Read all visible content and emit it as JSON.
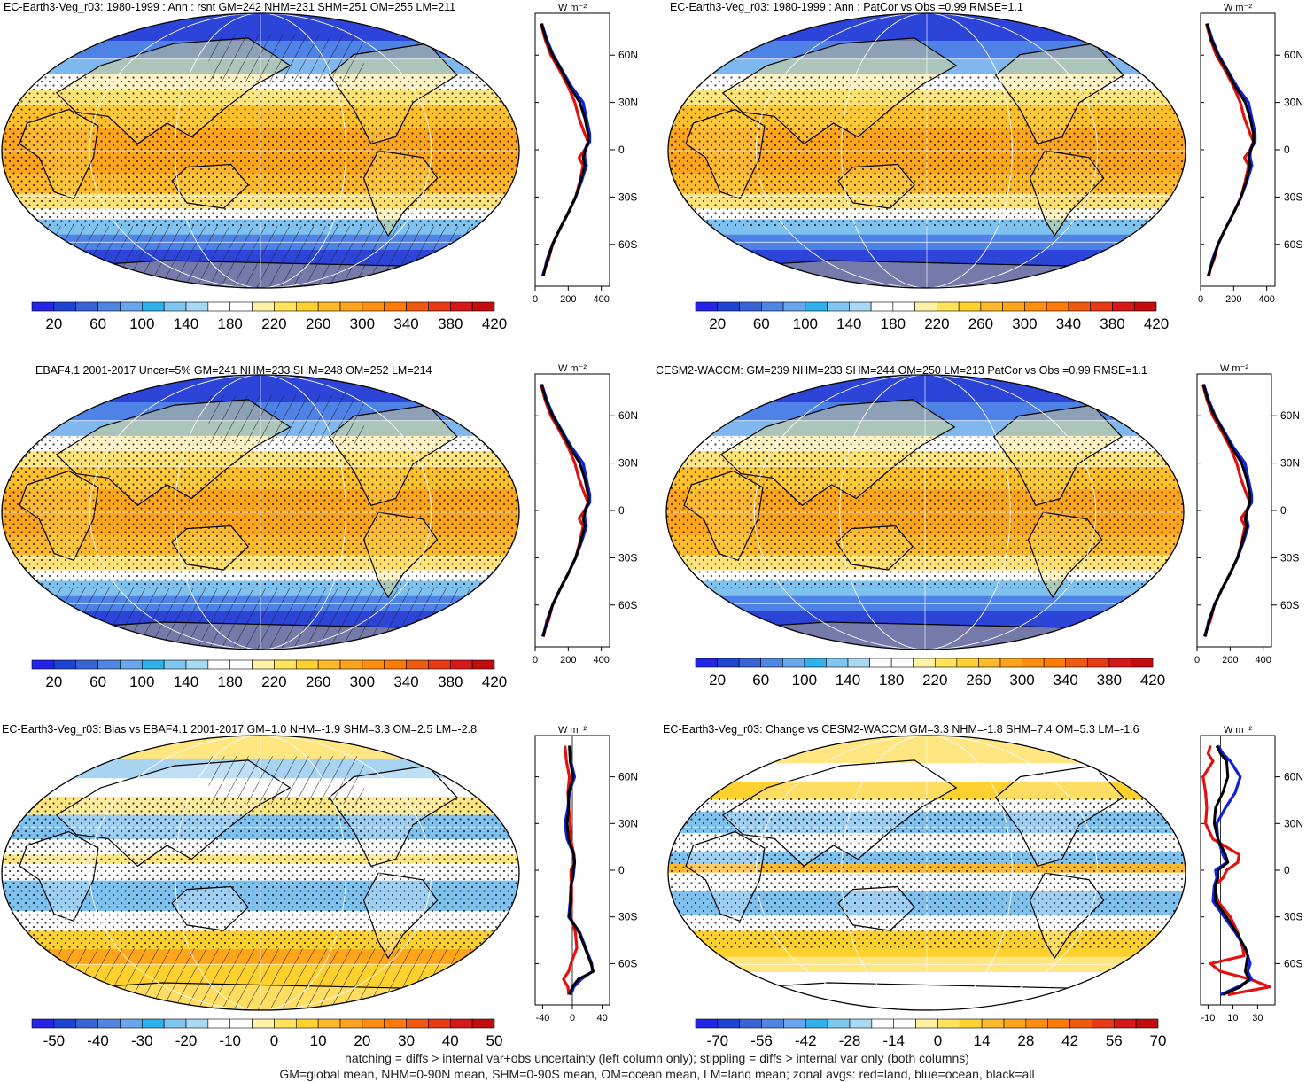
{
  "panels": [
    {
      "title": "EC-Earth3-Veg_r03: 1980-1999 : Ann : rsnt GM=242 NHM=231 SHM=251 OM=255 LM=211",
      "map_kind": "abs",
      "hatch": true,
      "stipple": true,
      "colorbar": {
        "labels": [
          "20",
          "60",
          "100",
          "140",
          "180",
          "220",
          "260",
          "300",
          "340",
          "380",
          "420"
        ],
        "colors": [
          "#2424e6",
          "#1d44d3",
          "#3a64d6",
          "#4f85e3",
          "#6aa6ee",
          "#2fb2ec",
          "#7fc7f0",
          "#a8d8f2",
          "#ffffff",
          "#ffffff",
          "#fff2a6",
          "#ffe35a",
          "#ffd12e",
          "#ffb92a",
          "#ffa41d",
          "#ff8e10",
          "#ff7a08",
          "#f05a10",
          "#e83a14",
          "#d81818",
          "#c40c0c"
        ]
      },
      "zonal": {
        "unit": "W m⁻²",
        "yticks": [
          "60N",
          "30N",
          "0",
          "30S",
          "60S"
        ],
        "xticks": [
          "0",
          "200",
          "400"
        ],
        "xlim": [
          0,
          450
        ],
        "lat": [
          80,
          70,
          60,
          50,
          40,
          30,
          20,
          10,
          5,
          0,
          -5,
          -10,
          -20,
          -30,
          -40,
          -50,
          -60,
          -70,
          -75,
          -80
        ],
        "land": [
          35,
          60,
          95,
          150,
          200,
          240,
          265,
          300,
          320,
          300,
          265,
          290,
          270,
          245,
          200,
          150,
          105,
          80,
          60,
          50
        ],
        "ocean": [
          40,
          70,
          110,
          165,
          220,
          290,
          310,
          330,
          330,
          300,
          300,
          310,
          280,
          245,
          200,
          150,
          105,
          70,
          60,
          45
        ],
        "all": [
          38,
          65,
          105,
          160,
          210,
          270,
          300,
          320,
          320,
          305,
          290,
          300,
          275,
          245,
          200,
          150,
          105,
          75,
          60,
          48
        ]
      }
    },
    {
      "title": "EC-Earth3-Veg_r03: 1980-1999 : Ann : PatCor vs Obs =0.99 RMSE=1.1",
      "map_kind": "abs",
      "hatch": false,
      "stipple": true,
      "colorbar": {
        "labels": [
          "20",
          "60",
          "100",
          "140",
          "180",
          "220",
          "260",
          "300",
          "340",
          "380",
          "420"
        ],
        "colors": [
          "#2424e6",
          "#1d44d3",
          "#3a64d6",
          "#4f85e3",
          "#6aa6ee",
          "#2fb2ec",
          "#7fc7f0",
          "#a8d8f2",
          "#ffffff",
          "#ffffff",
          "#fff2a6",
          "#ffe35a",
          "#ffd12e",
          "#ffb92a",
          "#ffa41d",
          "#ff8e10",
          "#ff7a08",
          "#f05a10",
          "#e83a14",
          "#d81818",
          "#c40c0c"
        ]
      },
      "zonal": {
        "unit": "W m⁻²",
        "yticks": [
          "60N",
          "30N",
          "0",
          "30S",
          "60S"
        ],
        "xticks": [
          "0",
          "200",
          "400"
        ],
        "xlim": [
          0,
          450
        ],
        "lat": [
          80,
          70,
          60,
          50,
          40,
          30,
          20,
          10,
          5,
          0,
          -5,
          -10,
          -20,
          -30,
          -40,
          -50,
          -60,
          -70,
          -75,
          -80
        ],
        "land": [
          35,
          60,
          95,
          150,
          200,
          240,
          265,
          300,
          320,
          300,
          265,
          290,
          270,
          245,
          200,
          150,
          105,
          80,
          60,
          50
        ],
        "ocean": [
          40,
          70,
          110,
          165,
          220,
          290,
          310,
          330,
          330,
          300,
          300,
          310,
          280,
          245,
          200,
          150,
          105,
          70,
          60,
          45
        ],
        "all": [
          38,
          65,
          105,
          160,
          210,
          270,
          300,
          320,
          320,
          305,
          290,
          300,
          275,
          245,
          200,
          150,
          105,
          75,
          60,
          48
        ]
      }
    },
    {
      "title": "EBAF4.1 2001-2017 Uncer=5% GM=241 NHM=233 SHM=248 OM=252 LM=214",
      "map_kind": "abs",
      "hatch": true,
      "stipple": true,
      "colorbar": {
        "labels": [
          "20",
          "60",
          "100",
          "140",
          "180",
          "220",
          "260",
          "300",
          "340",
          "380",
          "420"
        ],
        "colors": [
          "#2424e6",
          "#1d44d3",
          "#3a64d6",
          "#4f85e3",
          "#6aa6ee",
          "#2fb2ec",
          "#7fc7f0",
          "#a8d8f2",
          "#ffffff",
          "#ffffff",
          "#fff2a6",
          "#ffe35a",
          "#ffd12e",
          "#ffb92a",
          "#ffa41d",
          "#ff8e10",
          "#ff7a08",
          "#f05a10",
          "#e83a14",
          "#d81818",
          "#c40c0c"
        ]
      },
      "zonal": {
        "unit": "W m⁻²",
        "yticks": [
          "60N",
          "30N",
          "0",
          "30S",
          "60S"
        ],
        "xticks": [
          "0",
          "200",
          "400"
        ],
        "xlim": [
          0,
          450
        ],
        "lat": [
          80,
          70,
          60,
          50,
          40,
          30,
          20,
          10,
          5,
          0,
          -5,
          -10,
          -20,
          -30,
          -40,
          -50,
          -60,
          -70,
          -75,
          -80
        ],
        "land": [
          35,
          60,
          95,
          150,
          200,
          240,
          265,
          300,
          320,
          300,
          265,
          290,
          270,
          245,
          200,
          150,
          105,
          80,
          60,
          50
        ],
        "ocean": [
          40,
          70,
          110,
          165,
          220,
          290,
          310,
          330,
          330,
          300,
          300,
          310,
          280,
          245,
          200,
          150,
          105,
          70,
          60,
          45
        ],
        "all": [
          38,
          65,
          105,
          160,
          210,
          270,
          300,
          320,
          320,
          305,
          290,
          300,
          275,
          245,
          200,
          150,
          105,
          75,
          60,
          48
        ]
      }
    },
    {
      "title": "CESM2-WACCM: GM=239 NHM=233 SHM=244 OM=250 LM=213 PatCor vs Obs =0.99 RMSE=1.1",
      "map_kind": "abs",
      "hatch": false,
      "stipple": true,
      "colorbar": {
        "labels": [
          "20",
          "60",
          "100",
          "140",
          "180",
          "220",
          "260",
          "300",
          "340",
          "380",
          "420"
        ],
        "colors": [
          "#2424e6",
          "#1d44d3",
          "#3a64d6",
          "#4f85e3",
          "#6aa6ee",
          "#2fb2ec",
          "#7fc7f0",
          "#a8d8f2",
          "#ffffff",
          "#ffffff",
          "#fff2a6",
          "#ffe35a",
          "#ffd12e",
          "#ffb92a",
          "#ffa41d",
          "#ff8e10",
          "#ff7a08",
          "#f05a10",
          "#e83a14",
          "#d81818",
          "#c40c0c"
        ]
      },
      "zonal": {
        "unit": "W m⁻²",
        "yticks": [
          "60N",
          "30N",
          "0",
          "30S",
          "60S"
        ],
        "xticks": [
          "0",
          "200",
          "400"
        ],
        "xlim": [
          0,
          450
        ],
        "lat": [
          80,
          70,
          60,
          50,
          40,
          30,
          20,
          10,
          5,
          0,
          -5,
          -10,
          -20,
          -30,
          -40,
          -50,
          -60,
          -70,
          -75,
          -80
        ],
        "land": [
          35,
          60,
          95,
          150,
          200,
          240,
          265,
          300,
          320,
          300,
          265,
          290,
          270,
          245,
          200,
          150,
          105,
          80,
          60,
          50
        ],
        "ocean": [
          40,
          70,
          110,
          165,
          220,
          290,
          310,
          330,
          330,
          300,
          300,
          310,
          280,
          245,
          200,
          150,
          105,
          70,
          60,
          45
        ],
        "all": [
          38,
          65,
          105,
          160,
          210,
          270,
          300,
          320,
          320,
          305,
          290,
          300,
          275,
          245,
          200,
          150,
          105,
          75,
          60,
          48
        ]
      }
    },
    {
      "title": "EC-Earth3-Veg_r03: Bias vs EBAF4.1 2001-2017 GM=1.0 NHM=-1.9 SHM=3.3 OM=2.5 LM=-2.8",
      "map_kind": "bias",
      "hatch": true,
      "stipple": true,
      "colorbar": {
        "labels": [
          "-50",
          "-40",
          "-30",
          "-20",
          "-10",
          "0",
          "10",
          "20",
          "30",
          "40",
          "50"
        ],
        "colors": [
          "#2424e6",
          "#1d44d3",
          "#3a64d6",
          "#4f85e3",
          "#6aa6ee",
          "#2fb2ec",
          "#7fc7f0",
          "#a8d8f2",
          "#ffffff",
          "#ffffff",
          "#fff2a6",
          "#ffe35a",
          "#ffd12e",
          "#ffb92a",
          "#ffa41d",
          "#ff8e10",
          "#ff7a08",
          "#f05a10",
          "#e83a14",
          "#d81818",
          "#c40c0c"
        ]
      },
      "zonal": {
        "unit": "W m⁻²",
        "yticks": [
          "60N",
          "30N",
          "0",
          "30S",
          "60S"
        ],
        "xticks": [
          "-40",
          "0",
          "40"
        ],
        "xlim": [
          -50,
          50
        ],
        "lat": [
          80,
          70,
          60,
          50,
          40,
          30,
          20,
          10,
          5,
          0,
          -5,
          -10,
          -20,
          -30,
          -40,
          -50,
          -60,
          -65,
          -70,
          -75,
          -80
        ],
        "land": [
          -10,
          -8,
          -4,
          -6,
          -5,
          -3,
          -2,
          2,
          3,
          -2,
          -2,
          -1,
          -1,
          -2,
          4,
          6,
          -2,
          -5,
          -12,
          -6,
          -5
        ],
        "ocean": [
          -3,
          -2,
          3,
          -4,
          -6,
          -10,
          -7,
          2,
          3,
          2,
          1,
          -2,
          -3,
          -5,
          10,
          18,
          26,
          27,
          12,
          2,
          -2
        ],
        "all": [
          -4,
          -3,
          1,
          -5,
          -5,
          -7,
          -5,
          2,
          3,
          1,
          0,
          -2,
          -2,
          -4,
          9,
          17,
          25,
          28,
          8,
          0,
          -4
        ]
      }
    },
    {
      "title": "EC-Earth3-Veg_r03: Change vs CESM2-WACCM GM=3.3 NHM=-1.8 SHM=7.4 OM=5.3 LM=-1.6",
      "map_kind": "change",
      "hatch": false,
      "stipple": true,
      "colorbar": {
        "labels": [
          "-70",
          "-56",
          "-42",
          "-28",
          "-14",
          "0",
          "14",
          "28",
          "42",
          "56",
          "70"
        ],
        "colors": [
          "#2424e6",
          "#1d44d3",
          "#3a64d6",
          "#4f85e3",
          "#6aa6ee",
          "#2fb2ec",
          "#7fc7f0",
          "#a8d8f2",
          "#ffffff",
          "#ffffff",
          "#fff2a6",
          "#ffe35a",
          "#ffd12e",
          "#ffb92a",
          "#ffa41d",
          "#ff8e10",
          "#ff7a08",
          "#f05a10",
          "#e83a14",
          "#d81818",
          "#c40c0c"
        ]
      },
      "zonal": {
        "unit": "W m⁻²",
        "yticks": [
          "60N",
          "30N",
          "0",
          "30S",
          "60S"
        ],
        "xticks": [
          "-10",
          "10",
          "30"
        ],
        "xlim": [
          -16,
          44
        ],
        "lat": [
          80,
          75,
          70,
          60,
          50,
          40,
          30,
          20,
          10,
          5,
          0,
          -5,
          -10,
          -20,
          -30,
          -40,
          -50,
          -55,
          -60,
          -65,
          -70,
          -75,
          -80
        ],
        "land": [
          -8,
          -10,
          -6,
          -14,
          -12,
          -11,
          -12,
          -6,
          15,
          14,
          5,
          2,
          -5,
          -2,
          8,
          14,
          18,
          19,
          -8,
          0,
          24,
          40,
          6
        ],
        "ocean": [
          -2,
          2,
          8,
          16,
          12,
          4,
          -3,
          -2,
          2,
          5,
          -4,
          -3,
          -5,
          -6,
          3,
          12,
          20,
          22,
          24,
          22,
          25,
          14,
          0
        ],
        "all": [
          -3,
          0,
          5,
          6,
          2,
          -4,
          -5,
          -2,
          4,
          6,
          -2,
          -2,
          -4,
          -4,
          5,
          13,
          20,
          22,
          21,
          20,
          23,
          16,
          2
        ]
      }
    }
  ],
  "footer": {
    "line1": "hatching = diffs > internal var+obs uncertainty (left column only); stippling = diffs > internal var only (both columns)",
    "line2": "GM=global mean, NHM=0-90N mean, SHM=0-90S mean, OM=ocean mean, LM=land mean; zonal avgs: red=land, blue=ocean, black=all"
  },
  "legend_colors": {
    "land": "#e31010",
    "ocean": "#1020e0",
    "all": "#000000"
  }
}
